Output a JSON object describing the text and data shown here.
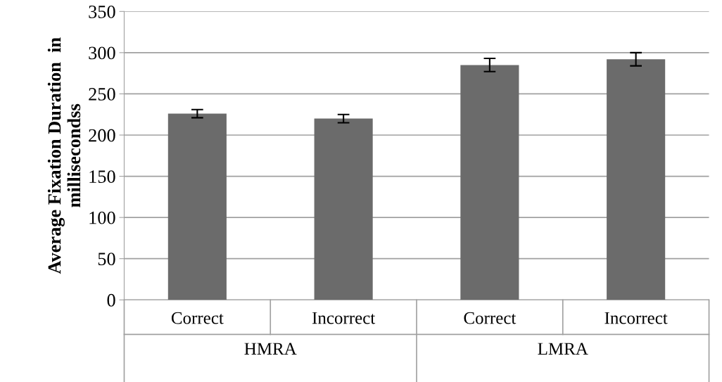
{
  "chart_data": {
    "type": "bar",
    "ylabel": "Average Fixation Duration  in millisecondss",
    "categories": [
      "Correct",
      "Incorrect",
      "Correct",
      "Incorrect"
    ],
    "values": [
      226,
      220,
      285,
      292
    ],
    "errors": [
      5,
      5,
      8,
      8
    ],
    "color": "#6b6b6b",
    "ylim": [
      0,
      350
    ],
    "yticks": [
      0,
      50,
      100,
      150,
      200,
      250,
      300,
      350
    ],
    "grid": "y",
    "annotations": [
      "HMRA",
      "LMRA"
    ]
  }
}
